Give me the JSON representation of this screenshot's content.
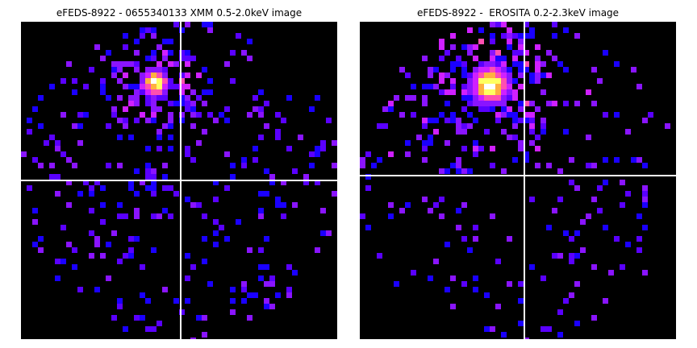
{
  "panels": [
    {
      "title": "eFEDS-8922 - 0655340133 XMM 0.5-2.0keV image",
      "colormap": "gnuplot2",
      "background_color": "#000000",
      "crosshair_color": "#ffffff"
    },
    {
      "title": "eFEDS-8922 -  EROSITA 0.2-2.3keV image",
      "colormap": "gnuplot2",
      "background_color": "#000000",
      "crosshair_color": "#ffffff"
    }
  ],
  "colors": {
    "low_counts": "#1a00ff",
    "mid_counts": "#8a14ff",
    "high_counts": "#ff4fb0",
    "peak_counts": "#ffff60"
  }
}
